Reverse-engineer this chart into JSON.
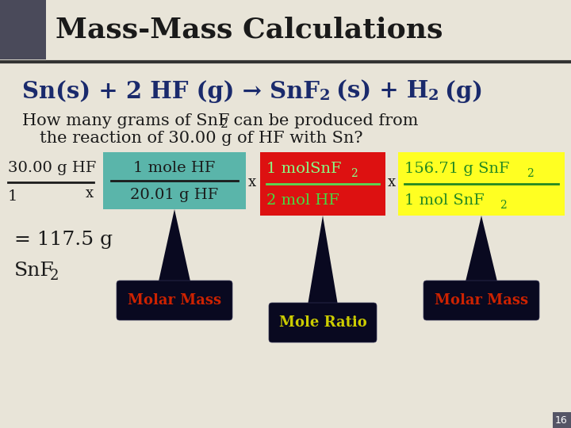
{
  "title": "Mass-Mass Calculations",
  "bg_color": "#e8e4d8",
  "title_color": "#1a1a1a",
  "title_bg_left": "#4a4a5a",
  "eq_color": "#1a2a6c",
  "question_color": "#1a1a1a",
  "box1_bg": "#5ab5aa",
  "box1_color": "#1a1a1a",
  "box2_bg": "#dd1111",
  "box2_top_color": "#88ff88",
  "box2_bot_color": "#44dd44",
  "box3_bg": "#ffff22",
  "box3_color": "#228822",
  "result_color": "#1a1a1a",
  "bubble_bg": "#090920",
  "bubble1_text": "Molar Mass",
  "bubble1_color": "#cc2200",
  "bubble2_text": "Mole Ratio",
  "bubble2_color": "#cccc00",
  "bubble3_text": "Molar Mass",
  "bubble3_color": "#cc2200",
  "page_num": "16",
  "page_num_bg": "#555566",
  "page_num_color": "#ffffff"
}
